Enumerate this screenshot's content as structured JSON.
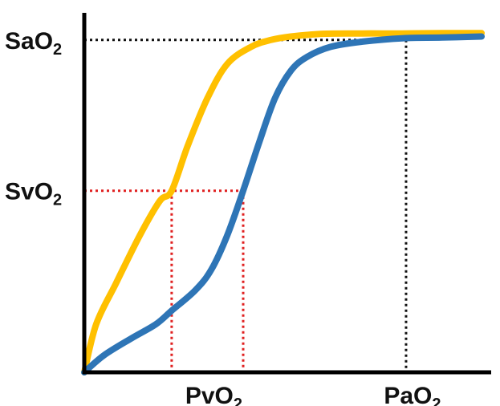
{
  "chart_data": {
    "type": "line",
    "title": "",
    "xlabel": "",
    "ylabel": "",
    "grid": false,
    "xlim": [
      0,
      100
    ],
    "ylim": [
      0,
      100
    ],
    "y_markers": [
      {
        "base": "SaO",
        "sub": "2",
        "value": 97
      },
      {
        "base": "SvO",
        "sub": "2",
        "value": 53
      }
    ],
    "x_markers": [
      {
        "base": "PvO",
        "sub": "2",
        "value": 22
      },
      {
        "base": "PvO",
        "sub": "2",
        "value": 40
      },
      {
        "base": "PaO",
        "sub": "2",
        "value": 81
      }
    ],
    "x_tick_labels": [
      {
        "base": "PvO",
        "sub": "2",
        "value": 31
      },
      {
        "base": "PaO",
        "sub": "2",
        "value": 81
      }
    ],
    "series": [
      {
        "color": "#FFC000",
        "x": [
          0,
          3,
          8,
          14,
          19,
          22,
          26,
          31,
          36,
          42,
          47,
          52,
          60,
          70,
          80,
          90,
          100
        ],
        "y": [
          0,
          14,
          26,
          40,
          50,
          53,
          66,
          80,
          90,
          95,
          97,
          98,
          98.8,
          98.9,
          98.9,
          99,
          99
        ]
      },
      {
        "color": "#2E75B6",
        "x": [
          0,
          5,
          12,
          18,
          22,
          28,
          32,
          36,
          40,
          44,
          48,
          52,
          56,
          62,
          70,
          80,
          90,
          100
        ],
        "y": [
          0,
          5,
          10,
          14,
          18,
          24,
          30,
          40,
          53,
          67,
          80,
          88,
          92,
          95,
          96.5,
          97.5,
          97.7,
          98
        ]
      }
    ],
    "marker_lines": [
      {
        "color": "#111111",
        "y_value": 97,
        "x_value": 81
      },
      {
        "color": "#E02020",
        "y_value": 53,
        "x_values": [
          22,
          40
        ]
      }
    ]
  }
}
